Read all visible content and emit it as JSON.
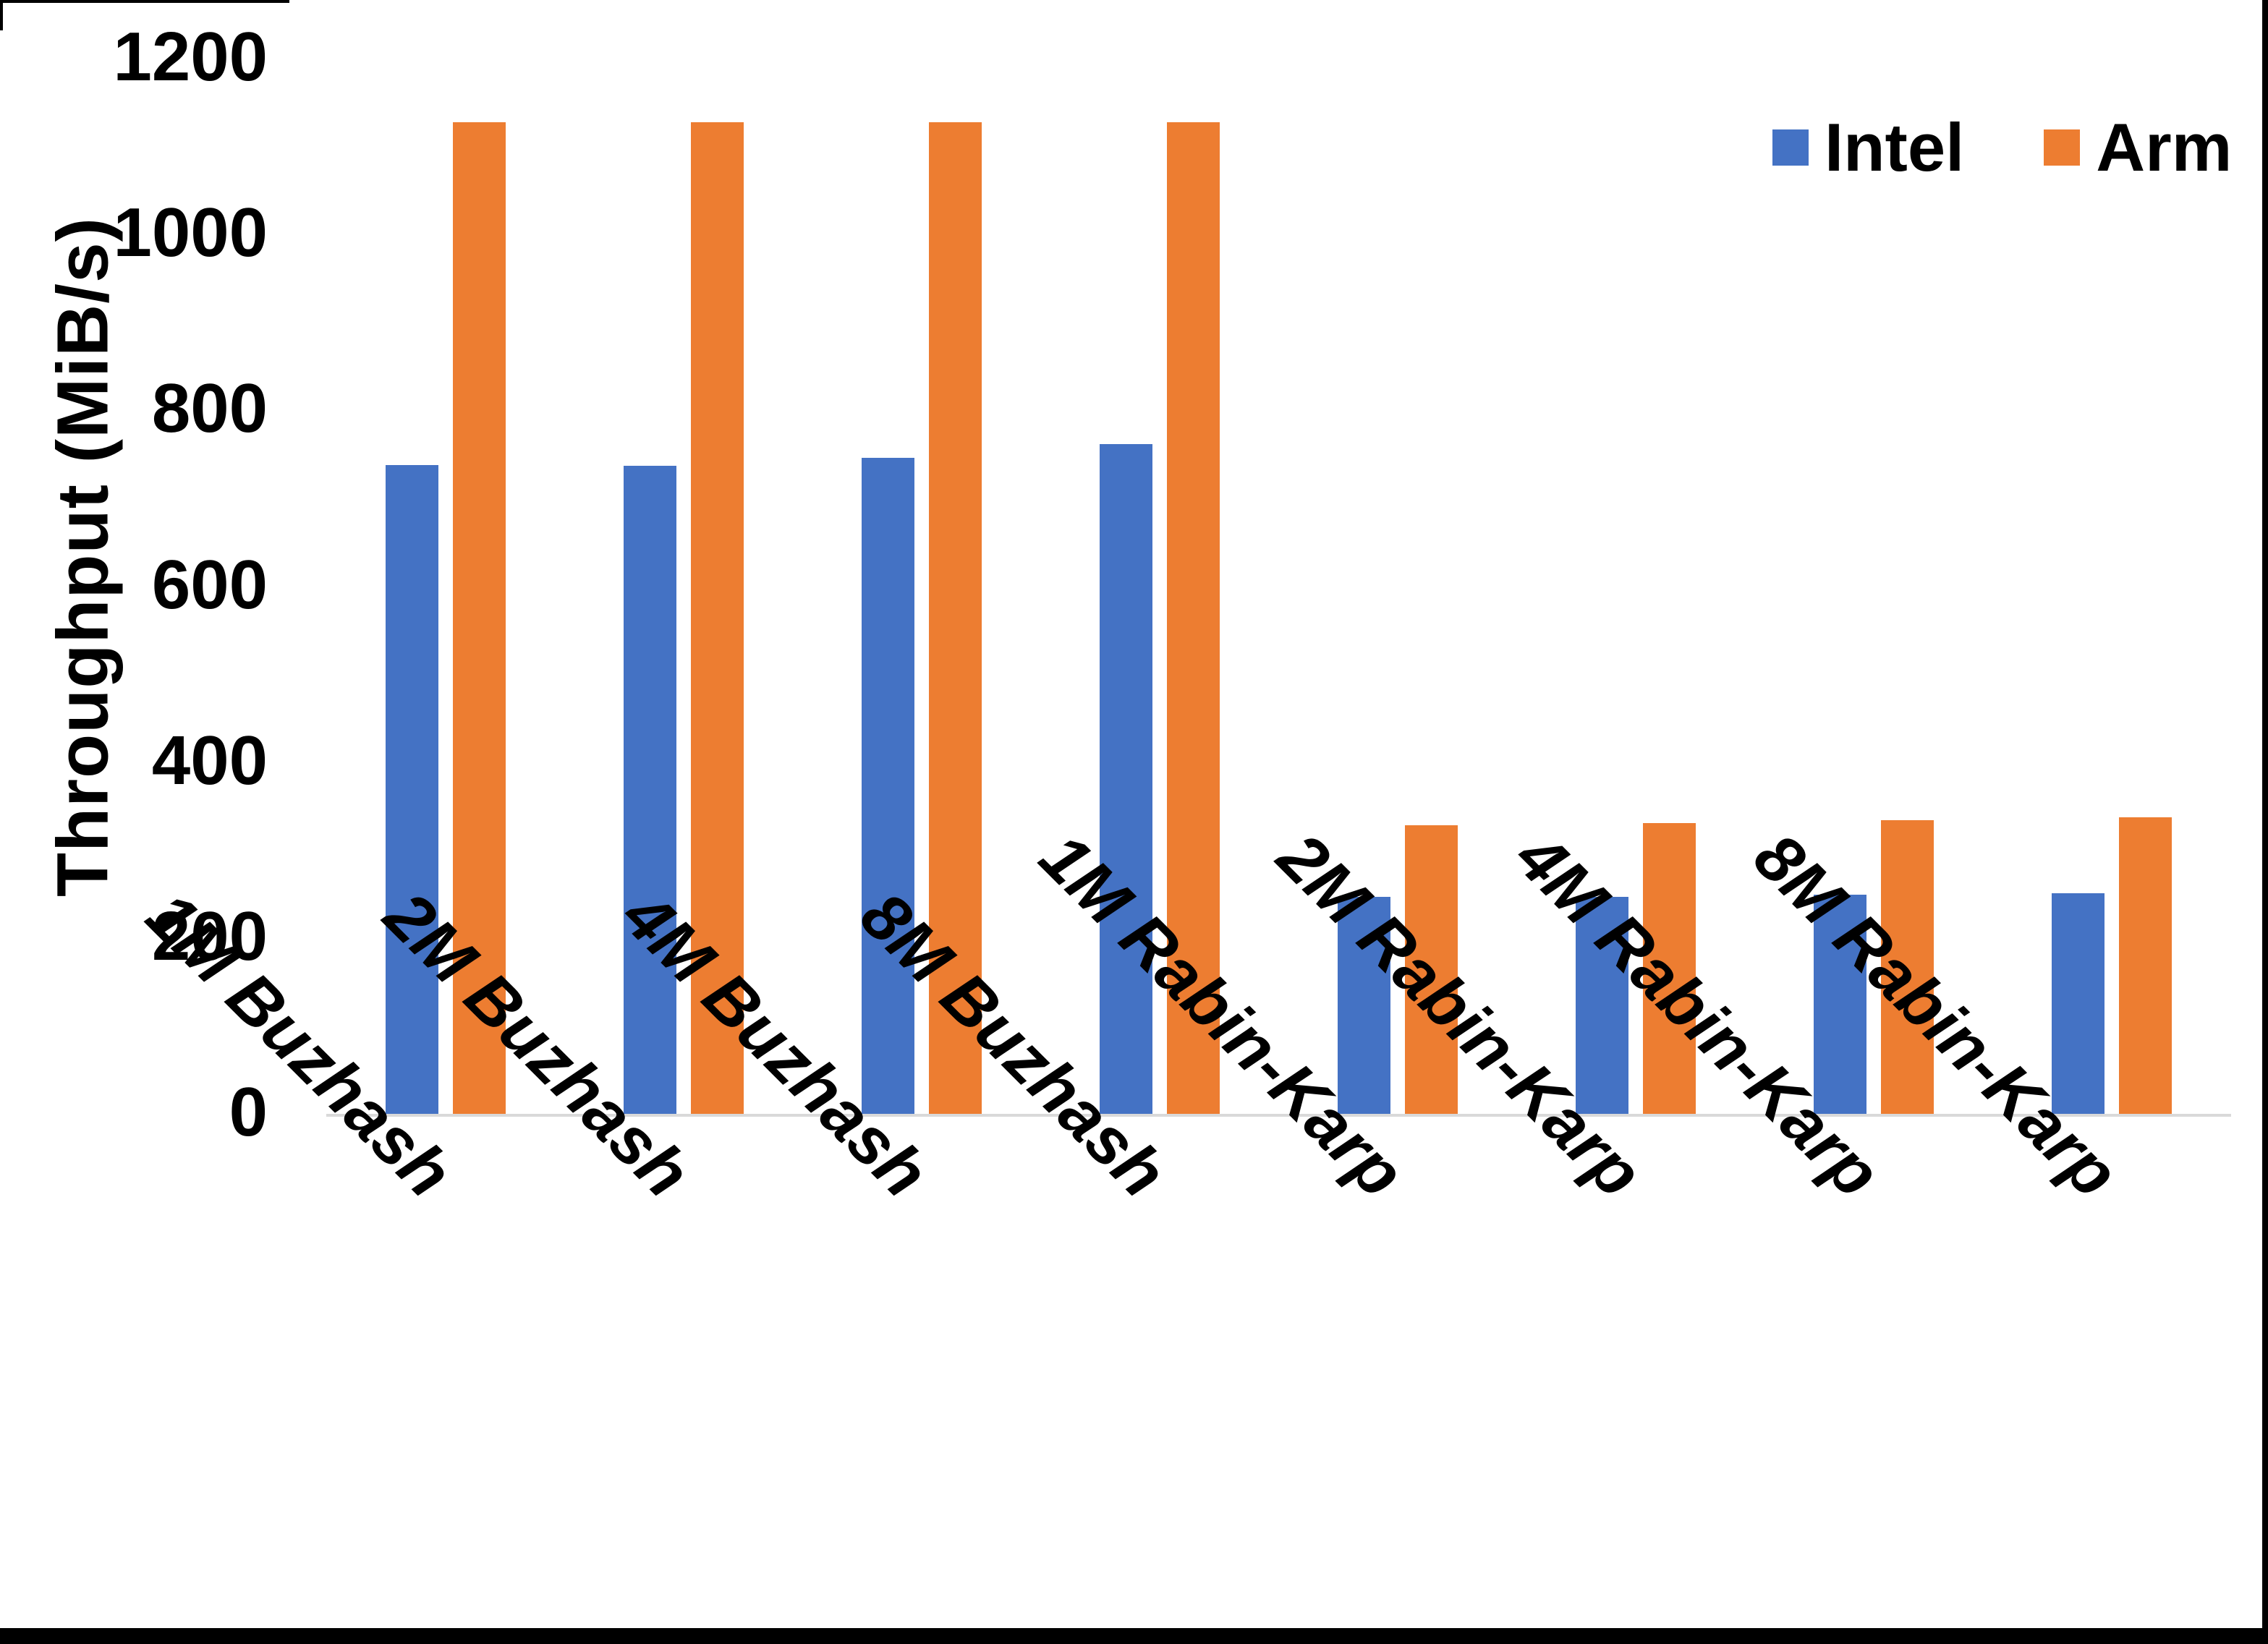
{
  "chart_data": {
    "type": "bar",
    "title": "",
    "xlabel": "",
    "ylabel": "Throughput (MiB/s)",
    "ylim": [
      0,
      1200
    ],
    "yticks": [
      0,
      200,
      400,
      600,
      800,
      1000,
      1200
    ],
    "grid": false,
    "legend_position": "top-right",
    "categories": [
      "1M Buzhash",
      "2M Buzhash",
      "4M Buzhash",
      "8M Buzhash",
      "1M Rabin-Karp",
      "2M Rabin-Karp",
      "4M Rabin-Karp",
      "8M Rabin-Karp"
    ],
    "series": [
      {
        "name": "Intel",
        "color": "#4472C4",
        "values": [
          738,
          737,
          746,
          762,
          247,
          247,
          249,
          251
        ]
      },
      {
        "name": "Arm",
        "color": "#ED7D31",
        "values": [
          1128,
          1128,
          1128,
          1128,
          328,
          331,
          334,
          337
        ]
      }
    ]
  },
  "axis": {
    "y_title": "Throughput (MiB/s)",
    "y_tick_labels_top_to_bottom": [
      "1200",
      "1000",
      "800",
      "600",
      "400",
      "200",
      "0"
    ]
  },
  "colors": {
    "background": "#FFFFFF",
    "baseline": "#D9D9D9",
    "text": "#000000",
    "screenshot_border": "#000000"
  }
}
